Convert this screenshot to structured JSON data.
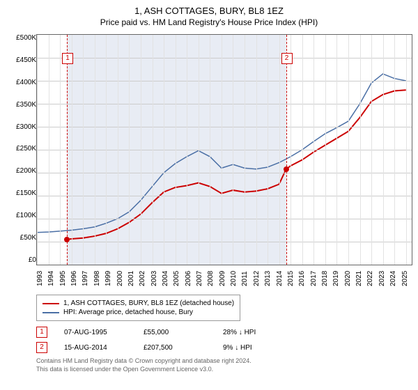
{
  "title": "1, ASH COTTAGES, BURY, BL8 1EZ",
  "subtitle": "Price paid vs. HM Land Registry's House Price Index (HPI)",
  "chart": {
    "type": "line",
    "ylabel_prefix": "£",
    "ylim": [
      0,
      500000
    ],
    "ytick_step": 50000,
    "yticks": [
      "£0",
      "£50K",
      "£100K",
      "£150K",
      "£200K",
      "£250K",
      "£300K",
      "£350K",
      "£400K",
      "£450K",
      "£500K"
    ],
    "x_years": [
      1993,
      1994,
      1995,
      1996,
      1997,
      1998,
      1999,
      2000,
      2001,
      2002,
      2003,
      2004,
      2005,
      2006,
      2007,
      2008,
      2009,
      2010,
      2011,
      2012,
      2013,
      2014,
      2015,
      2016,
      2017,
      2018,
      2019,
      2020,
      2021,
      2022,
      2023,
      2024,
      2025
    ],
    "xlim": [
      1993,
      2025.5
    ],
    "shaded_range": [
      1995.6,
      2014.6
    ],
    "series": [
      {
        "name": "1, ASH COTTAGES, BURY, BL8 1EZ (detached house)",
        "color": "#cc0000",
        "width": 2,
        "points": [
          [
            1995.6,
            55000
          ],
          [
            1996,
            56000
          ],
          [
            1997,
            58000
          ],
          [
            1998,
            62000
          ],
          [
            1999,
            68000
          ],
          [
            2000,
            78000
          ],
          [
            2001,
            92000
          ],
          [
            2002,
            110000
          ],
          [
            2003,
            135000
          ],
          [
            2004,
            158000
          ],
          [
            2005,
            168000
          ],
          [
            2006,
            172000
          ],
          [
            2007,
            178000
          ],
          [
            2008,
            170000
          ],
          [
            2009,
            155000
          ],
          [
            2010,
            162000
          ],
          [
            2011,
            158000
          ],
          [
            2012,
            160000
          ],
          [
            2013,
            165000
          ],
          [
            2014,
            175000
          ],
          [
            2014.6,
            207500
          ],
          [
            2015,
            215000
          ],
          [
            2016,
            228000
          ],
          [
            2017,
            245000
          ],
          [
            2018,
            260000
          ],
          [
            2019,
            275000
          ],
          [
            2020,
            290000
          ],
          [
            2021,
            320000
          ],
          [
            2022,
            355000
          ],
          [
            2023,
            370000
          ],
          [
            2024,
            378000
          ],
          [
            2025,
            380000
          ]
        ]
      },
      {
        "name": "HPI: Average price, detached house, Bury",
        "color": "#4a6fa5",
        "width": 1.5,
        "points": [
          [
            1993,
            70000
          ],
          [
            1994,
            71000
          ],
          [
            1995,
            73000
          ],
          [
            1996,
            75000
          ],
          [
            1997,
            78000
          ],
          [
            1998,
            82000
          ],
          [
            1999,
            90000
          ],
          [
            2000,
            100000
          ],
          [
            2001,
            115000
          ],
          [
            2002,
            140000
          ],
          [
            2003,
            170000
          ],
          [
            2004,
            200000
          ],
          [
            2005,
            220000
          ],
          [
            2006,
            235000
          ],
          [
            2007,
            248000
          ],
          [
            2008,
            235000
          ],
          [
            2009,
            210000
          ],
          [
            2010,
            218000
          ],
          [
            2011,
            210000
          ],
          [
            2012,
            208000
          ],
          [
            2013,
            212000
          ],
          [
            2014,
            222000
          ],
          [
            2015,
            235000
          ],
          [
            2016,
            250000
          ],
          [
            2017,
            268000
          ],
          [
            2018,
            285000
          ],
          [
            2019,
            298000
          ],
          [
            2020,
            312000
          ],
          [
            2021,
            350000
          ],
          [
            2022,
            395000
          ],
          [
            2023,
            415000
          ],
          [
            2024,
            405000
          ],
          [
            2025,
            400000
          ]
        ]
      }
    ],
    "markers": [
      {
        "num": "1",
        "x": 1995.6,
        "y": 55000,
        "box_y": 460000
      },
      {
        "num": "2",
        "x": 2014.6,
        "y": 207500,
        "box_y": 460000
      }
    ],
    "background_color": "#ffffff",
    "grid_color": "#cccccc",
    "shaded_color": "#e8ecf4",
    "axis_fontsize": 10,
    "title_fontsize": 13
  },
  "legend": {
    "items": [
      {
        "color": "#cc0000",
        "label": "1, ASH COTTAGES, BURY, BL8 1EZ (detached house)"
      },
      {
        "color": "#4a6fa5",
        "label": "HPI: Average price, detached house, Bury"
      }
    ]
  },
  "transactions": [
    {
      "num": "1",
      "date": "07-AUG-1995",
      "price": "£55,000",
      "delta": "28% ↓ HPI"
    },
    {
      "num": "2",
      "date": "15-AUG-2014",
      "price": "£207,500",
      "delta": "9% ↓ HPI"
    }
  ],
  "footer": {
    "line1": "Contains HM Land Registry data © Crown copyright and database right 2024.",
    "line2": "This data is licensed under the Open Government Licence v3.0."
  }
}
